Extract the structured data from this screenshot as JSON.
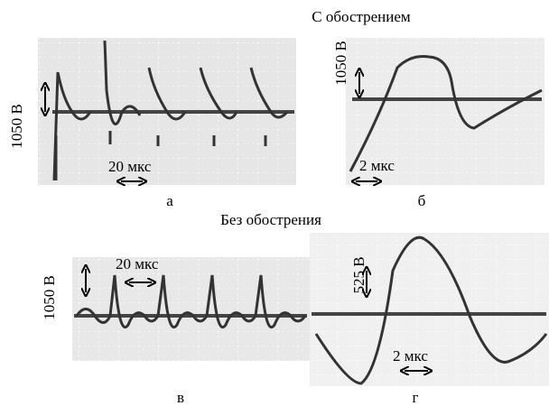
{
  "sections": [
    {
      "title": "С обострением",
      "panels": [
        {
          "label": "а",
          "voltage_scale": "1050 В",
          "time_scale": "20 мкс"
        },
        {
          "label": "б",
          "voltage_scale": "1050 В",
          "time_scale": "2 мкс"
        }
      ]
    },
    {
      "title": "Без обострения",
      "panels": [
        {
          "label": "в",
          "voltage_scale": "1050 В",
          "time_scale": "20 мкс"
        },
        {
          "label": "г",
          "voltage_scale": "525 В",
          "time_scale": "2 мкс"
        }
      ]
    }
  ]
}
